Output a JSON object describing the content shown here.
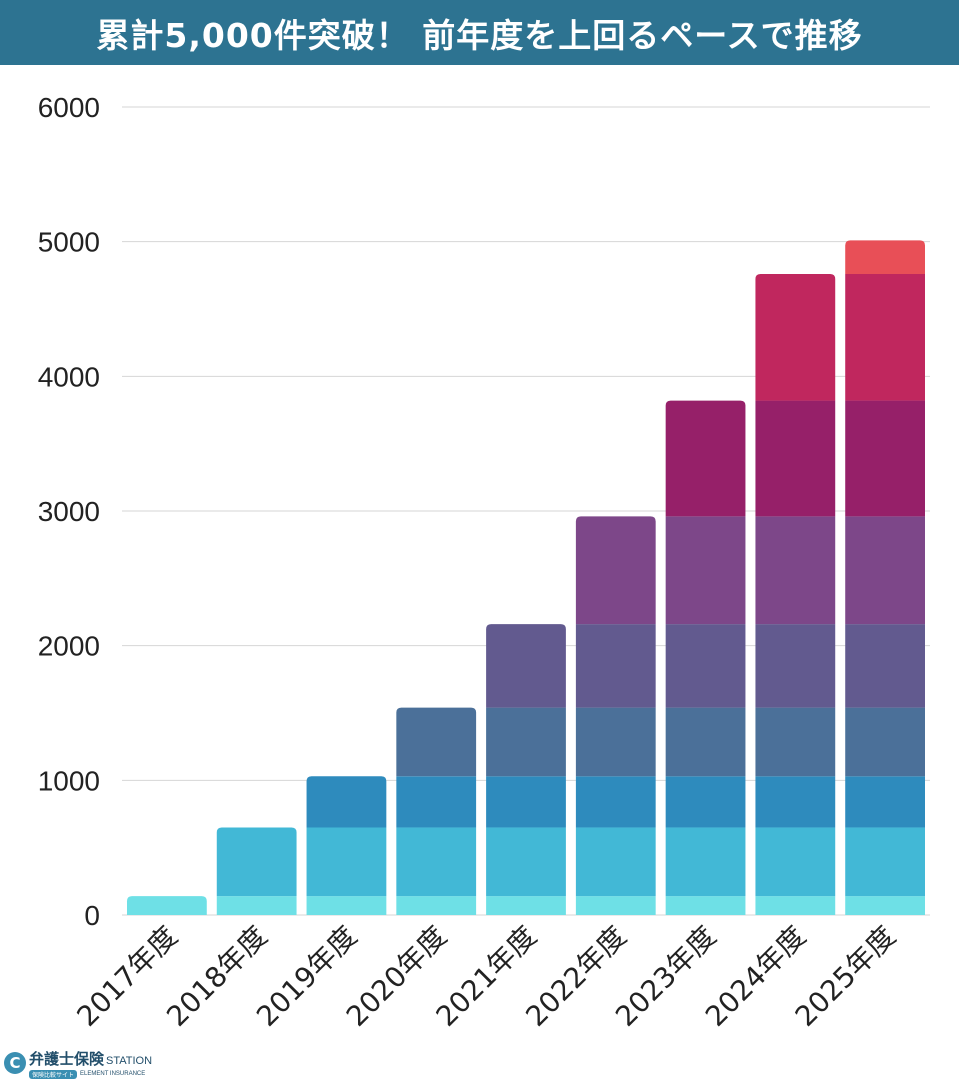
{
  "header": {
    "title": "累計5,000件突破！ 前年度を上回るペースで推移"
  },
  "chart_data": {
    "type": "bar",
    "stacked": true,
    "title": "累計5,000件突破！ 前年度を上回るペースで推移",
    "xlabel": "",
    "ylabel": "",
    "ylim": [
      0,
      6000
    ],
    "yticks": [
      0,
      1000,
      2000,
      3000,
      4000,
      5000,
      6000
    ],
    "grid": true,
    "categories": [
      "2017年度",
      "2018年度",
      "2019年度",
      "2020年度",
      "2021年度",
      "2022年度",
      "2023年度",
      "2024年度",
      "2025年度"
    ],
    "series": [
      {
        "name": "2017年度",
        "color": "#6ee0e6",
        "values": [
          140,
          140,
          140,
          140,
          140,
          140,
          140,
          140,
          140
        ]
      },
      {
        "name": "2018年度",
        "color": "#42b8d6",
        "values": [
          0,
          510,
          510,
          510,
          510,
          510,
          510,
          510,
          510
        ]
      },
      {
        "name": "2019年度",
        "color": "#2e8bbd",
        "values": [
          0,
          0,
          380,
          380,
          380,
          380,
          380,
          380,
          380
        ]
      },
      {
        "name": "2020年度",
        "color": "#4b7099",
        "values": [
          0,
          0,
          0,
          510,
          510,
          510,
          510,
          510,
          510
        ]
      },
      {
        "name": "2021年度",
        "color": "#625a8f",
        "values": [
          0,
          0,
          0,
          0,
          620,
          620,
          620,
          620,
          620
        ]
      },
      {
        "name": "2022年度",
        "color": "#7d4789",
        "values": [
          0,
          0,
          0,
          0,
          0,
          800,
          800,
          800,
          800
        ]
      },
      {
        "name": "2023年度",
        "color": "#962069",
        "values": [
          0,
          0,
          0,
          0,
          0,
          0,
          860,
          860,
          860
        ]
      },
      {
        "name": "2024年度",
        "color": "#c0275e",
        "values": [
          0,
          0,
          0,
          0,
          0,
          0,
          0,
          940,
          940
        ]
      },
      {
        "name": "2025年度",
        "color": "#e84f57",
        "values": [
          0,
          0,
          0,
          0,
          0,
          0,
          0,
          0,
          250
        ]
      }
    ],
    "totals": [
      140,
      650,
      1030,
      1540,
      2160,
      2960,
      3820,
      4760,
      5010
    ]
  },
  "logo": {
    "name_jp": "弁護士保険",
    "name_en": "STATION",
    "badge": "保険比較サイト",
    "sub_en": "ELEMENT INSURANCE",
    "mark": "C"
  }
}
